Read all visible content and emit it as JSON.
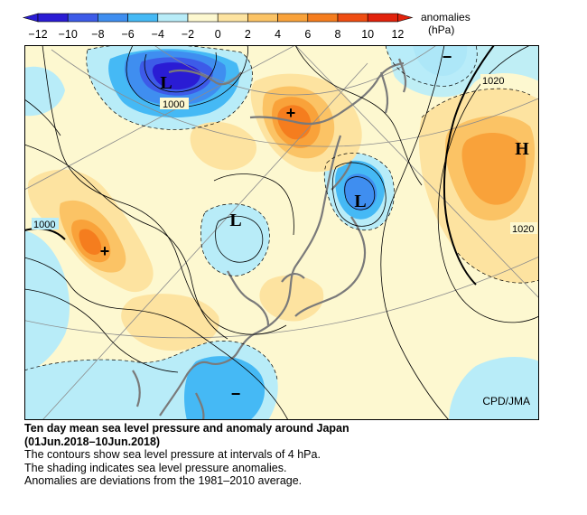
{
  "legend": {
    "units_line1": "anomalies",
    "units_line2": "(hPa)",
    "ticks": [
      "−12",
      "−10",
      "−8",
      "−6",
      "−4",
      "−2",
      "0",
      "2",
      "4",
      "6",
      "8",
      "10",
      "12"
    ],
    "colors": [
      "#2a1cd4",
      "#3d5be8",
      "#3f8ef0",
      "#45b9f5",
      "#b8ecf8",
      "#fdf8d0",
      "#fde3a0",
      "#fbc365",
      "#f9a23a",
      "#f57d1e",
      "#ef4d12",
      "#e2220c"
    ]
  },
  "map": {
    "credit": "CPD/JMA",
    "labels": {
      "low_a": "L",
      "low_b": "L",
      "low_c": "L",
      "high": "H",
      "plus_a": "+",
      "plus_b": "+",
      "minus_a": "−",
      "minus_b": "−"
    },
    "isobars": {
      "c1000_a": "1000",
      "c1000_b": "1000",
      "c1020_a": "1020",
      "c1020_b": "1020"
    }
  },
  "caption": {
    "title_line1": "Ten day mean sea level pressure and anomaly around Japan",
    "title_line2": "(01Jun.2018–10Jun.2018)",
    "line3": "The contours show sea level pressure at intervals of 4 hPa.",
    "line4": "The shading indicates sea level pressure anomalies.",
    "line5": "Anomalies are deviations from the 1981–2010 average."
  }
}
